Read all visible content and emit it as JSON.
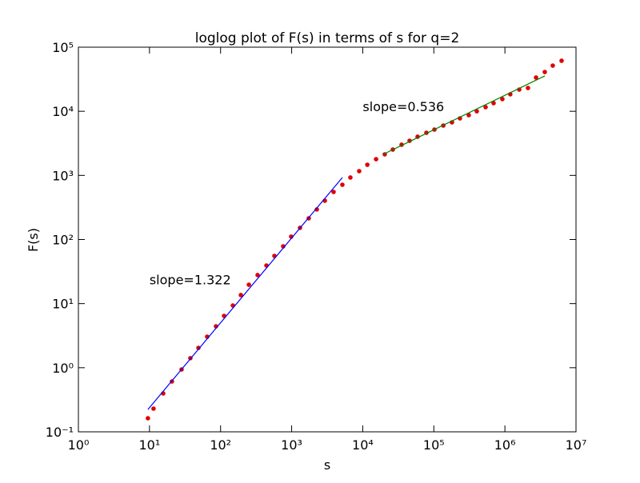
{
  "chart_data": {
    "type": "scatter",
    "title": "loglog plot of F(s) in terms of s for q=2",
    "x_label": "s",
    "y_label": "F(s)",
    "xscale": "log",
    "yscale": "log",
    "xlim": [
      1,
      10000000
    ],
    "ylim": [
      0.1,
      100000
    ],
    "xticks": [
      {
        "value": 1,
        "label": "10⁰"
      },
      {
        "value": 10,
        "label": "10¹"
      },
      {
        "value": 100,
        "label": "10²"
      },
      {
        "value": 1000,
        "label": "10³"
      },
      {
        "value": 10000,
        "label": "10⁴"
      },
      {
        "value": 100000,
        "label": "10⁵"
      },
      {
        "value": 1000000,
        "label": "10⁶"
      },
      {
        "value": 10000000,
        "label": "10⁷"
      }
    ],
    "yticks": [
      {
        "value": 0.1,
        "label": "10⁻¹"
      },
      {
        "value": 1,
        "label": "10⁰"
      },
      {
        "value": 10,
        "label": "10¹"
      },
      {
        "value": 100,
        "label": "10²"
      },
      {
        "value": 1000,
        "label": "10³"
      },
      {
        "value": 10000,
        "label": "10⁴"
      },
      {
        "value": 100000,
        "label": "10⁵"
      }
    ],
    "series": [
      {
        "style": "dots",
        "color": "#e00000",
        "x": [
          9.5,
          11.4,
          15.6,
          20.7,
          28.3,
          37.6,
          48.8,
          64.8,
          86.2,
          112,
          149,
          193,
          250,
          332,
          442,
          572,
          760,
          985,
          1310,
          1740,
          2260,
          2930,
          3890,
          5170,
          6700,
          8910,
          11600,
          15400,
          20400,
          26500,
          35200,
          45600,
          59100,
          78600,
          102000,
          136000,
          180000,
          233000,
          310000,
          402000,
          535000,
          693000,
          921000,
          1190000,
          1590000,
          2110000,
          2740000,
          3640000,
          4710000,
          6270000
        ],
        "values": [
          0.163,
          0.23,
          0.397,
          0.61,
          0.94,
          1.41,
          2.04,
          3.05,
          4.43,
          6.44,
          9.35,
          13.6,
          19.7,
          27.9,
          39.3,
          55.5,
          78.3,
          111,
          152,
          214,
          294,
          403,
          552,
          714,
          927,
          1165,
          1466,
          1790,
          2130,
          2530,
          3010,
          3470,
          4010,
          4620,
          5190,
          5990,
          6720,
          7760,
          8710,
          10000,
          11600,
          13400,
          15500,
          18400,
          21800,
          23100,
          33600,
          41000,
          51600,
          61400
        ]
      },
      {
        "style": "line",
        "color": "#0000ff",
        "x": [
          9.5,
          5170
        ],
        "values": [
          0.223,
          927
        ]
      },
      {
        "style": "line",
        "color": "#008000",
        "x": [
          19400,
          3640000
        ],
        "values": [
          2130,
          35600
        ]
      }
    ],
    "annotations": [
      {
        "text": "slope=1.322",
        "x": 10,
        "y": 20
      },
      {
        "text": "slope=0.536",
        "x": 10000,
        "y": 10000
      }
    ]
  }
}
